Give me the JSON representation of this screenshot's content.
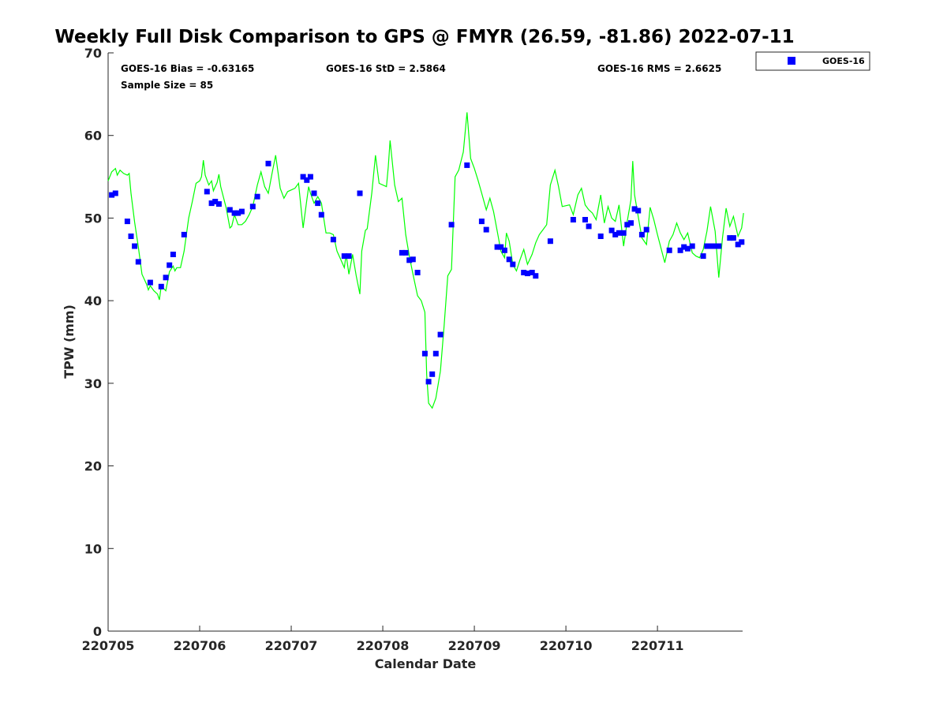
{
  "chart_data": {
    "type": "scatter",
    "title": "Weekly Full Disk Comparison to GPS @ FMYR (26.59, -81.86) 2022-07-11",
    "xlabel": "Calendar Date",
    "ylabel": "TPW (mm)",
    "xlim": [
      220705,
      220711.93
    ],
    "ylim": [
      0,
      70
    ],
    "x_ticks": [
      "220705",
      "220706",
      "220707",
      "220708",
      "220709",
      "220710",
      "220711"
    ],
    "y_ticks": [
      "0",
      "10",
      "20",
      "30",
      "40",
      "50",
      "60",
      "70"
    ],
    "grid": false,
    "legend_position": "top-right outside",
    "stats": {
      "bias": "GOES-16 Bias = -0.63165",
      "std": "GOES-16 StD = 2.5864",
      "rms": "GOES-16 RMS = 2.6625",
      "sample_size": "Sample Size = 85"
    },
    "colors": {
      "gps_line": "#00ff00",
      "goes_marker": "#0000ff"
    },
    "series": [
      {
        "name": "GOES-16",
        "kind": "scatter",
        "points": [
          [
            220705.04,
            52.8
          ],
          [
            220705.08,
            53.0
          ],
          [
            220705.21,
            49.6
          ],
          [
            220705.25,
            47.8
          ],
          [
            220705.29,
            46.6
          ],
          [
            220705.33,
            44.7
          ],
          [
            220705.46,
            42.2
          ],
          [
            220705.58,
            41.7
          ],
          [
            220705.63,
            42.8
          ],
          [
            220705.67,
            44.3
          ],
          [
            220705.71,
            45.6
          ],
          [
            220705.83,
            48.0
          ],
          [
            220706.08,
            53.2
          ],
          [
            220706.13,
            51.8
          ],
          [
            220706.17,
            52.0
          ],
          [
            220706.21,
            51.7
          ],
          [
            220706.33,
            51.0
          ],
          [
            220706.38,
            50.6
          ],
          [
            220706.42,
            50.6
          ],
          [
            220706.46,
            50.8
          ],
          [
            220706.58,
            51.4
          ],
          [
            220706.63,
            52.6
          ],
          [
            220706.75,
            56.6
          ],
          [
            220707.13,
            55.0
          ],
          [
            220707.17,
            54.6
          ],
          [
            220707.21,
            55.0
          ],
          [
            220707.25,
            53.0
          ],
          [
            220707.29,
            51.8
          ],
          [
            220707.33,
            50.4
          ],
          [
            220707.46,
            47.4
          ],
          [
            220707.58,
            45.4
          ],
          [
            220707.63,
            45.4
          ],
          [
            220707.75,
            53.0
          ],
          [
            220708.21,
            45.8
          ],
          [
            220708.25,
            45.8
          ],
          [
            220708.29,
            44.9
          ],
          [
            220708.33,
            45.0
          ],
          [
            220708.38,
            43.4
          ],
          [
            220708.46,
            33.6
          ],
          [
            220708.5,
            30.2
          ],
          [
            220708.54,
            31.1
          ],
          [
            220708.58,
            33.6
          ],
          [
            220708.63,
            35.9
          ],
          [
            220708.75,
            49.2
          ],
          [
            220708.92,
            56.4
          ],
          [
            220709.08,
            49.6
          ],
          [
            220709.13,
            48.6
          ],
          [
            220709.25,
            46.5
          ],
          [
            220709.29,
            46.5
          ],
          [
            220709.33,
            46.1
          ],
          [
            220709.38,
            45.0
          ],
          [
            220709.42,
            44.4
          ],
          [
            220709.54,
            43.4
          ],
          [
            220709.58,
            43.3
          ],
          [
            220709.63,
            43.4
          ],
          [
            220709.67,
            43.0
          ],
          [
            220709.83,
            47.2
          ],
          [
            220710.08,
            49.8
          ],
          [
            220710.21,
            49.8
          ],
          [
            220710.25,
            49.0
          ],
          [
            220710.38,
            47.8
          ],
          [
            220710.5,
            48.5
          ],
          [
            220710.54,
            48.0
          ],
          [
            220710.58,
            48.2
          ],
          [
            220710.63,
            48.2
          ],
          [
            220710.67,
            49.2
          ],
          [
            220710.71,
            49.4
          ],
          [
            220710.75,
            51.1
          ],
          [
            220710.79,
            50.9
          ],
          [
            220710.83,
            48.0
          ],
          [
            220710.88,
            48.6
          ],
          [
            220711.13,
            46.1
          ],
          [
            220711.25,
            46.1
          ],
          [
            220711.29,
            46.5
          ],
          [
            220711.33,
            46.3
          ],
          [
            220711.38,
            46.6
          ],
          [
            220711.5,
            45.4
          ],
          [
            220711.54,
            46.6
          ],
          [
            220711.58,
            46.6
          ],
          [
            220711.63,
            46.6
          ],
          [
            220711.67,
            46.6
          ],
          [
            220711.79,
            47.6
          ],
          [
            220711.83,
            47.6
          ],
          [
            220711.88,
            46.8
          ],
          [
            220711.92,
            47.1
          ]
        ]
      },
      {
        "kind": "line",
        "points": [
          [
            220705.0,
            54.5
          ],
          [
            220705.04,
            55.6
          ],
          [
            220705.08,
            56.0
          ],
          [
            220705.1,
            55.2
          ],
          [
            220705.13,
            55.8
          ],
          [
            220705.17,
            55.4
          ],
          [
            220705.21,
            55.2
          ],
          [
            220705.23,
            55.4
          ],
          [
            220705.25,
            53.0
          ],
          [
            220705.29,
            49.5
          ],
          [
            220705.33,
            46.5
          ],
          [
            220705.37,
            43.2
          ],
          [
            220705.42,
            42.0
          ],
          [
            220705.44,
            41.3
          ],
          [
            220705.46,
            41.8
          ],
          [
            220705.5,
            41.2
          ],
          [
            220705.54,
            40.8
          ],
          [
            220705.56,
            40.1
          ],
          [
            220705.58,
            41.8
          ],
          [
            220705.63,
            41.2
          ],
          [
            220705.67,
            43.5
          ],
          [
            220705.71,
            44.2
          ],
          [
            220705.73,
            43.6
          ],
          [
            220705.75,
            44.0
          ],
          [
            220705.79,
            44.0
          ],
          [
            220705.83,
            46.0
          ],
          [
            220705.88,
            50.0
          ],
          [
            220705.92,
            52.0
          ],
          [
            220705.96,
            54.2
          ],
          [
            220706.0,
            54.5
          ],
          [
            220706.02,
            55.0
          ],
          [
            220706.04,
            57.0
          ],
          [
            220706.06,
            55.2
          ],
          [
            220706.1,
            54.0
          ],
          [
            220706.13,
            54.5
          ],
          [
            220706.15,
            53.3
          ],
          [
            220706.17,
            53.8
          ],
          [
            220706.19,
            54.3
          ],
          [
            220706.21,
            55.3
          ],
          [
            220706.23,
            53.8
          ],
          [
            220706.29,
            51.2
          ],
          [
            220706.33,
            48.8
          ],
          [
            220706.35,
            49.0
          ],
          [
            220706.38,
            50.4
          ],
          [
            220706.42,
            49.2
          ],
          [
            220706.46,
            49.2
          ],
          [
            220706.5,
            49.6
          ],
          [
            220706.54,
            50.4
          ],
          [
            220706.58,
            51.4
          ],
          [
            220706.63,
            54.0
          ],
          [
            220706.67,
            55.6
          ],
          [
            220706.71,
            53.8
          ],
          [
            220706.75,
            53.0
          ],
          [
            220706.79,
            55.4
          ],
          [
            220706.83,
            57.6
          ],
          [
            220706.88,
            53.6
          ],
          [
            220706.92,
            52.4
          ],
          [
            220706.96,
            53.2
          ],
          [
            220707.04,
            53.6
          ],
          [
            220707.08,
            54.2
          ],
          [
            220707.13,
            48.8
          ],
          [
            220707.17,
            52.2
          ],
          [
            220707.19,
            53.8
          ],
          [
            220707.21,
            53.0
          ],
          [
            220707.25,
            51.8
          ],
          [
            220707.29,
            52.6
          ],
          [
            220707.33,
            51.8
          ],
          [
            220707.38,
            48.2
          ],
          [
            220707.42,
            48.2
          ],
          [
            220707.46,
            48.0
          ],
          [
            220707.5,
            46.0
          ],
          [
            220707.54,
            45.0
          ],
          [
            220707.58,
            44.0
          ],
          [
            220707.6,
            45.6
          ],
          [
            220707.63,
            43.2
          ],
          [
            220707.67,
            45.6
          ],
          [
            220707.71,
            43.0
          ],
          [
            220707.75,
            40.8
          ],
          [
            220707.77,
            46.0
          ],
          [
            220707.81,
            48.5
          ],
          [
            220707.83,
            48.7
          ],
          [
            220707.88,
            53.0
          ],
          [
            220707.92,
            57.6
          ],
          [
            220707.96,
            54.2
          ],
          [
            220708.04,
            53.8
          ],
          [
            220708.06,
            56.2
          ],
          [
            220708.08,
            59.4
          ],
          [
            220708.13,
            54.0
          ],
          [
            220708.17,
            52.0
          ],
          [
            220708.21,
            52.4
          ],
          [
            220708.25,
            48.0
          ],
          [
            220708.29,
            45.4
          ],
          [
            220708.33,
            43.2
          ],
          [
            220708.38,
            40.6
          ],
          [
            220708.42,
            40.0
          ],
          [
            220708.46,
            38.6
          ],
          [
            220708.48,
            31.0
          ],
          [
            220708.5,
            27.6
          ],
          [
            220708.54,
            27.0
          ],
          [
            220708.58,
            28.2
          ],
          [
            220708.63,
            31.5
          ],
          [
            220708.67,
            37.0
          ],
          [
            220708.71,
            43.0
          ],
          [
            220708.75,
            43.8
          ],
          [
            220708.79,
            55.0
          ],
          [
            220708.83,
            55.8
          ],
          [
            220708.88,
            58.0
          ],
          [
            220708.92,
            62.8
          ],
          [
            220708.96,
            57.2
          ],
          [
            220709.0,
            56.0
          ],
          [
            220709.04,
            54.6
          ],
          [
            220709.08,
            53.0
          ],
          [
            220709.13,
            51.0
          ],
          [
            220709.17,
            52.4
          ],
          [
            220709.21,
            50.8
          ],
          [
            220709.25,
            48.4
          ],
          [
            220709.29,
            46.0
          ],
          [
            220709.33,
            45.2
          ],
          [
            220709.35,
            48.2
          ],
          [
            220709.38,
            47.2
          ],
          [
            220709.42,
            44.4
          ],
          [
            220709.46,
            43.6
          ],
          [
            220709.5,
            45.0
          ],
          [
            220709.54,
            46.2
          ],
          [
            220709.58,
            44.4
          ],
          [
            220709.63,
            45.6
          ],
          [
            220709.67,
            47.0
          ],
          [
            220709.71,
            48.0
          ],
          [
            220709.75,
            48.6
          ],
          [
            220709.79,
            49.2
          ],
          [
            220709.83,
            54.0
          ],
          [
            220709.88,
            55.8
          ],
          [
            220709.92,
            53.8
          ],
          [
            220709.96,
            51.4
          ],
          [
            220710.04,
            51.6
          ],
          [
            220710.08,
            50.4
          ],
          [
            220710.13,
            52.8
          ],
          [
            220710.17,
            53.6
          ],
          [
            220710.21,
            51.6
          ],
          [
            220710.25,
            51.0
          ],
          [
            220710.29,
            50.6
          ],
          [
            220710.33,
            49.8
          ],
          [
            220710.38,
            52.8
          ],
          [
            220710.42,
            49.4
          ],
          [
            220710.46,
            51.4
          ],
          [
            220710.5,
            50.0
          ],
          [
            220710.54,
            49.6
          ],
          [
            220710.58,
            51.6
          ],
          [
            220710.63,
            46.6
          ],
          [
            220710.67,
            49.6
          ],
          [
            220710.71,
            52.2
          ],
          [
            220710.73,
            56.9
          ],
          [
            220710.75,
            52.8
          ],
          [
            220710.79,
            50.2
          ],
          [
            220710.83,
            47.6
          ],
          [
            220710.88,
            46.8
          ],
          [
            220710.92,
            51.3
          ],
          [
            220710.96,
            49.8
          ],
          [
            220711.0,
            48.0
          ],
          [
            220711.08,
            44.6
          ],
          [
            220711.13,
            47.2
          ],
          [
            220711.17,
            48.0
          ],
          [
            220711.21,
            49.4
          ],
          [
            220711.25,
            48.2
          ],
          [
            220711.29,
            47.4
          ],
          [
            220711.33,
            48.2
          ],
          [
            220711.38,
            45.8
          ],
          [
            220711.42,
            45.4
          ],
          [
            220711.46,
            45.2
          ],
          [
            220711.5,
            46.2
          ],
          [
            220711.54,
            48.4
          ],
          [
            220711.58,
            51.4
          ],
          [
            220711.63,
            48.4
          ],
          [
            220711.67,
            42.8
          ],
          [
            220711.71,
            47.6
          ],
          [
            220711.75,
            51.2
          ],
          [
            220711.79,
            49.0
          ],
          [
            220711.83,
            50.2
          ],
          [
            220711.88,
            47.8
          ],
          [
            220711.92,
            48.8
          ],
          [
            220711.94,
            50.6
          ]
        ]
      }
    ]
  }
}
